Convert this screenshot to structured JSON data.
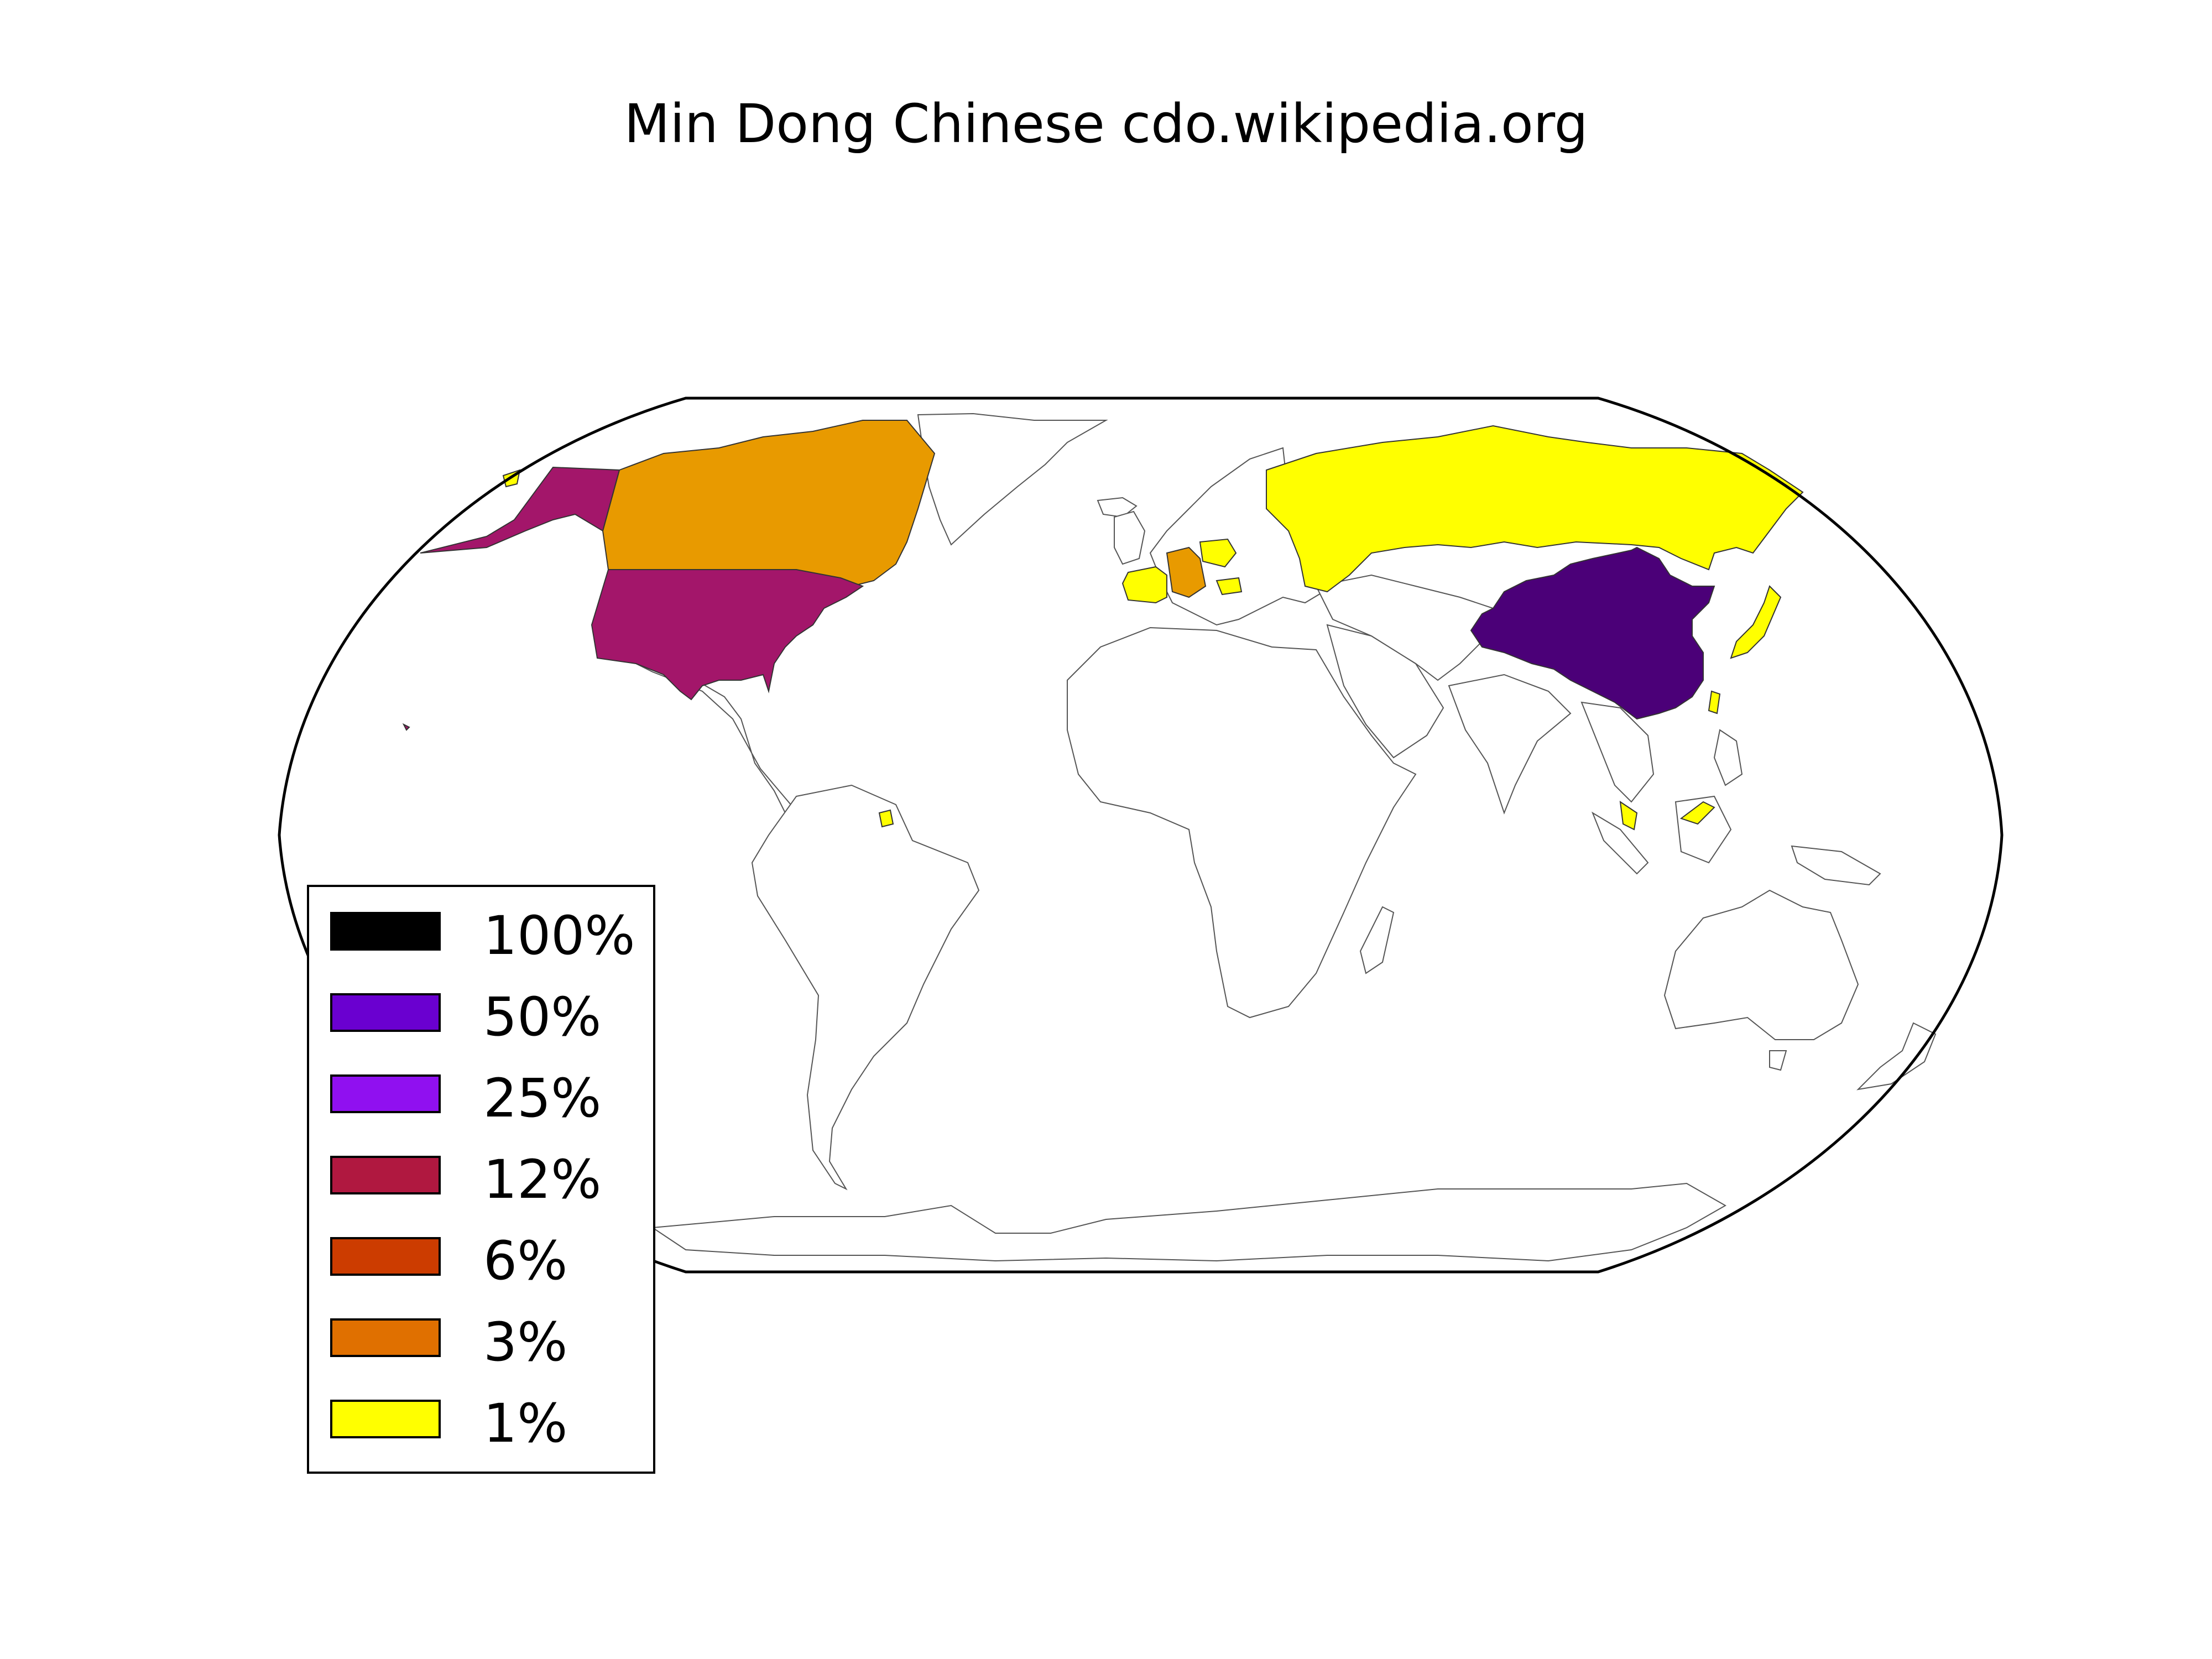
{
  "map": {
    "title": "Min Dong Chinese cdo.wikipedia.org",
    "projection": "robinson",
    "colors": {
      "frame": "#000000",
      "border": "#555555",
      "land": "#ffffff"
    },
    "regions": [
      {
        "name": "China",
        "bin": "50%",
        "color": "#4b0078"
      },
      {
        "name": "United States",
        "bin": "12%",
        "color": "#a3166a"
      },
      {
        "name": "Canada",
        "bin": "3%",
        "color": "#e89a00"
      },
      {
        "name": "Germany",
        "bin": "3%",
        "color": "#e89a00"
      },
      {
        "name": "Russia",
        "bin": "1%",
        "color": "#ffff00"
      },
      {
        "name": "Japan",
        "bin": "1%",
        "color": "#ffff00"
      },
      {
        "name": "France",
        "bin": "1%",
        "color": "#ffff00"
      },
      {
        "name": "Poland",
        "bin": "1%",
        "color": "#ffff00"
      },
      {
        "name": "Malaysia",
        "bin": "1%",
        "color": "#ffff00"
      },
      {
        "name": "Suriname",
        "bin": "1%",
        "color": "#ffff00"
      },
      {
        "name": "Taiwan",
        "bin": "1%",
        "color": "#ffff00"
      }
    ]
  },
  "legend": {
    "items": [
      {
        "label": "100%",
        "color": "#000000"
      },
      {
        "label": "50%",
        "color": "#6a00d0"
      },
      {
        "label": "25%",
        "color": "#9010f0"
      },
      {
        "label": "12%",
        "color": "#b01840"
      },
      {
        "label": "6%",
        "color": "#cc3c00"
      },
      {
        "label": "3%",
        "color": "#e07000"
      },
      {
        "label": "1%",
        "color": "#ffff00"
      }
    ]
  }
}
